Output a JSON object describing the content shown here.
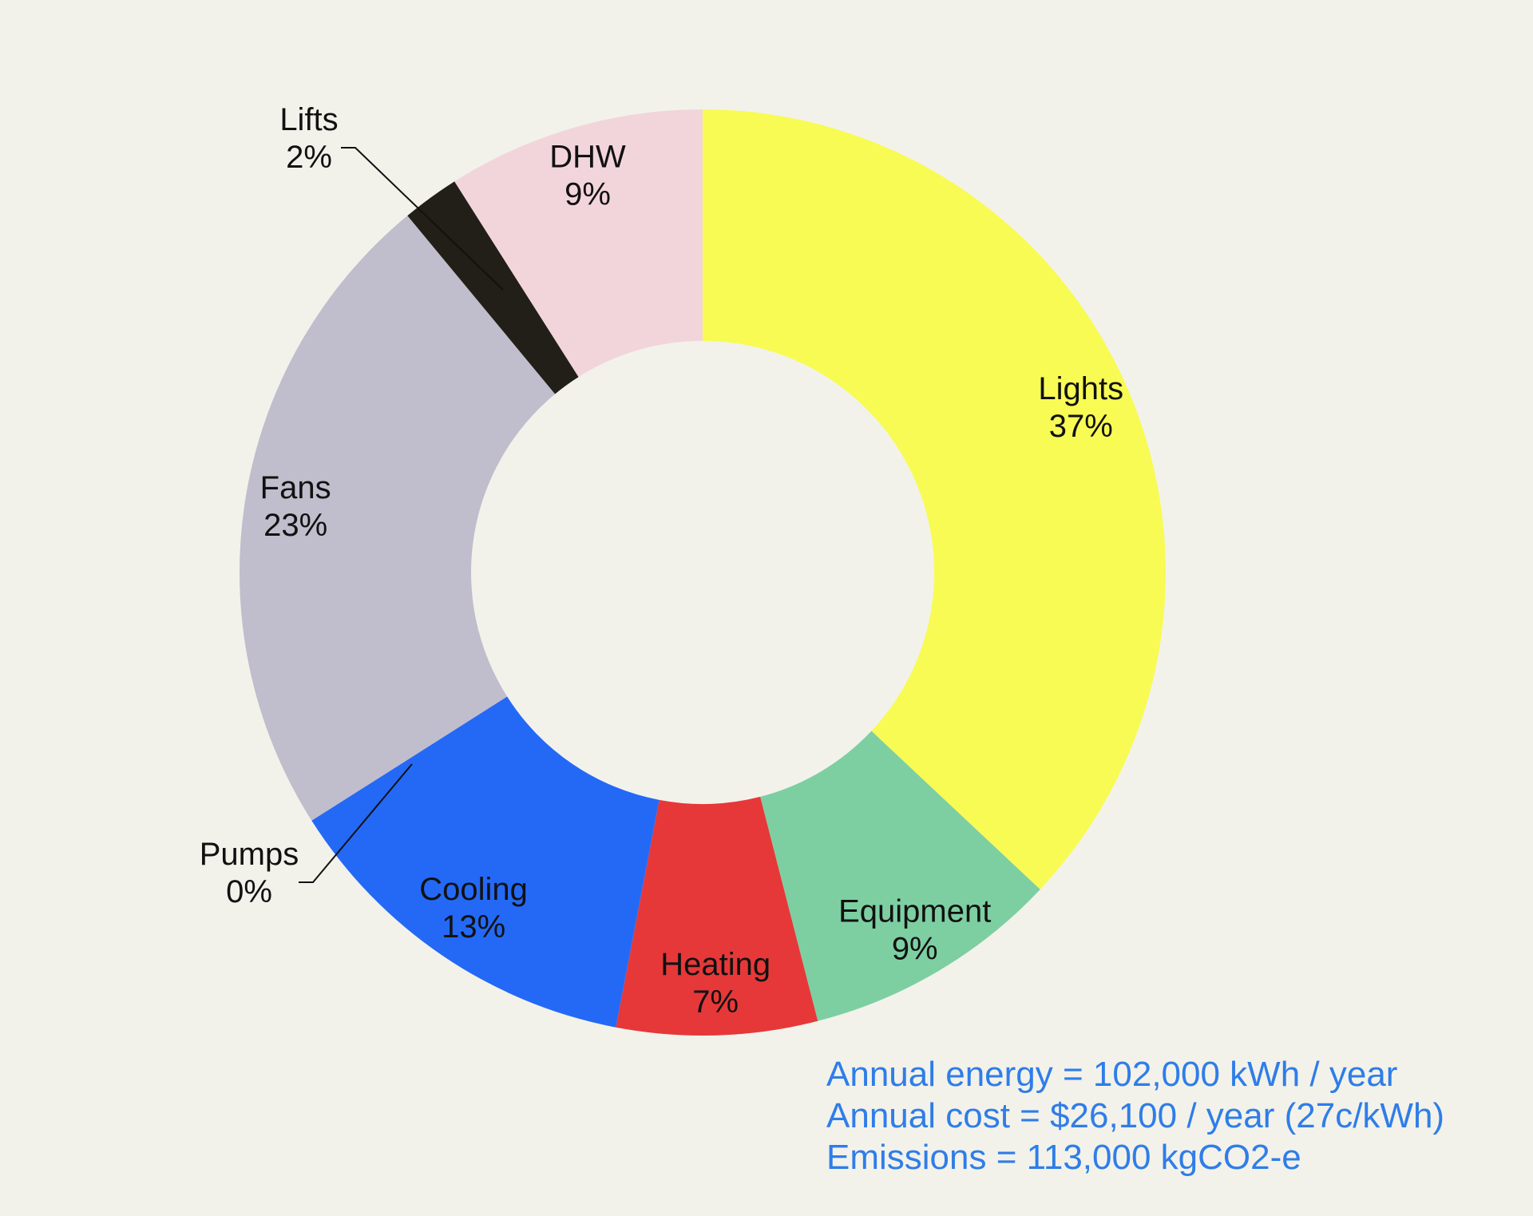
{
  "chart_data": {
    "type": "pie",
    "donut": true,
    "slices": [
      {
        "label": "Lights",
        "value": 37,
        "value_label": "37%",
        "color": "#f8fb54"
      },
      {
        "label": "Equipment",
        "value": 9,
        "value_label": "9%",
        "color": "#7dcfa2"
      },
      {
        "label": "Heating",
        "value": 7,
        "value_label": "7%",
        "color": "#e63838"
      },
      {
        "label": "Cooling",
        "value": 13,
        "value_label": "13%",
        "color": "#2469f6"
      },
      {
        "label": "Pumps",
        "value": 0,
        "value_label": "0%",
        "color": "#2469f6"
      },
      {
        "label": "Fans",
        "value": 23,
        "value_label": "23%",
        "color": "#c0bdcc"
      },
      {
        "label": "Lifts",
        "value": 2,
        "value_label": "2%",
        "color": "#221f18"
      },
      {
        "label": "DHW",
        "value": 9,
        "value_label": "9%",
        "color": "#f2d5da"
      }
    ]
  },
  "summary": {
    "energy": "Annual energy = 102,000 kWh / year",
    "cost": "Annual cost = $26,100 / year (27c/kWh)",
    "emissions": "Emissions = 113,000 kgCO2-e"
  }
}
